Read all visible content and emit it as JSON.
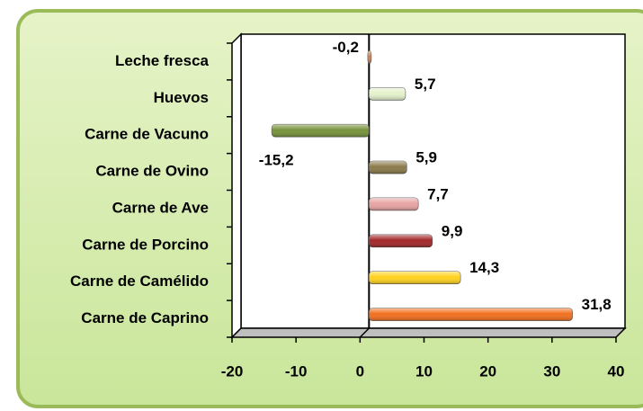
{
  "chart_data": {
    "type": "bar",
    "orientation": "horizontal",
    "categories": [
      "Leche fresca",
      "Huevos",
      "Carne de Vacuno",
      "Carne de Ovino",
      "Carne de Ave",
      "Carne de Porcino",
      "Carne de Camélido",
      "Carne de Caprino"
    ],
    "values": [
      -0.2,
      5.7,
      -15.2,
      5.9,
      7.7,
      9.9,
      14.3,
      31.8
    ],
    "value_labels": [
      "-0,2",
      "5,7",
      "-15,2",
      "5,9",
      "7,7",
      "9,9",
      "14,3",
      "31,8"
    ],
    "colors": [
      "#c8845c",
      "#e4f2cc",
      "#77933c",
      "#8b7b4a",
      "#e9a3a3",
      "#a3282a",
      "#ffd21f",
      "#f27020"
    ],
    "xlim": [
      -20,
      40
    ],
    "xticks": [
      -20,
      -10,
      0,
      10,
      20,
      30,
      40
    ]
  }
}
